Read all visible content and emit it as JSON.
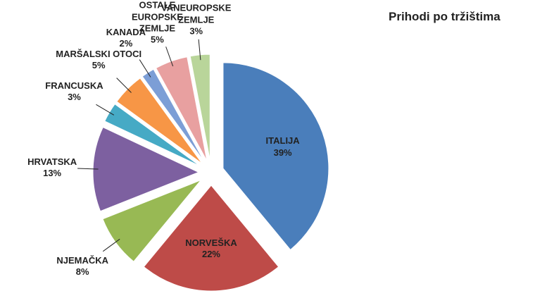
{
  "chart_data": {
    "type": "pie",
    "title": "Prihodi po tržištima",
    "categories": [
      "ITALIJA",
      "NORVEŠKA",
      "NJEMAČKA",
      "HRVATSKA",
      "FRANCUSKA",
      "MARŠALSKI OTOCI",
      "KANADA",
      "OSTALE EUROPSKE ZEMLJE",
      "OSTALE VANEUROPSKE ZEMLJE"
    ],
    "values": [
      39,
      22,
      8,
      13,
      3,
      5,
      2,
      5,
      3
    ],
    "value_labels": [
      "39%",
      "22%",
      "8%",
      "13%",
      "3%",
      "5%",
      "2%",
      "5%",
      "3%"
    ],
    "colors": [
      "#4a7ebb",
      "#be4b48",
      "#98b954",
      "#7d60a0",
      "#46aac5",
      "#f79646",
      "#7c9ed6",
      "#e8a0a0",
      "#b9d59a"
    ]
  }
}
